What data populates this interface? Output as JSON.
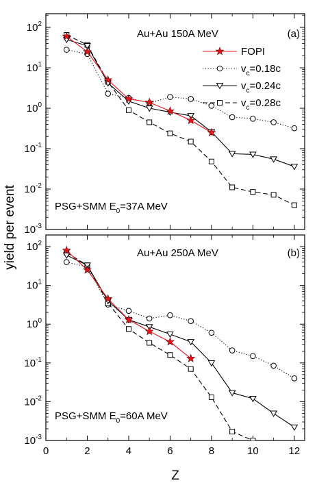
{
  "figure": {
    "ylabel": "yield per event",
    "xlabel": "Z"
  },
  "chart_data": [
    {
      "type": "line",
      "panel_label": "(a)",
      "title": "Au+Au   150A MeV",
      "annotation": {
        "prefix": "PSG+SMM E",
        "sub": "0",
        "suffix": "=37A MeV"
      },
      "xlim": [
        0,
        12.5
      ],
      "ylim": [
        0.001,
        200
      ],
      "yscale": "log",
      "xticks": [
        0,
        2,
        4,
        6,
        8,
        10,
        12
      ],
      "yticks": [
        {
          "base": "10",
          "exp": "2",
          "value": 100
        },
        {
          "base": "10",
          "exp": "1",
          "value": 10
        },
        {
          "base": "10",
          "exp": "0",
          "value": 1
        },
        {
          "base": "10",
          "exp": "-1",
          "value": 0.1
        },
        {
          "base": "10",
          "exp": "-2",
          "value": 0.01
        },
        {
          "base": "10",
          "exp": "-3",
          "value": 0.001
        }
      ],
      "legend_position": "top-right",
      "series": [
        {
          "name": "FOPI",
          "label": {
            "text": "FOPI"
          },
          "style": "solid",
          "color": "#e8141c",
          "marker": "star",
          "x": [
            1,
            2,
            3,
            4,
            5,
            6,
            7,
            8
          ],
          "y": [
            60,
            25,
            5,
            1.7,
            1.4,
            0.85,
            0.5,
            0.25
          ]
        },
        {
          "name": "v_c=0.18c",
          "label": {
            "base": "v",
            "sub": "c",
            "rest": "=0.18c"
          },
          "style": "dotted",
          "color": "#000000",
          "marker": "circle",
          "x": [
            1,
            2,
            3,
            4,
            5,
            6,
            7,
            8,
            9,
            10,
            11,
            12
          ],
          "y": [
            28,
            22,
            2.3,
            1.8,
            1.35,
            1.9,
            1.7,
            1.15,
            0.6,
            0.55,
            0.45,
            0.32
          ]
        },
        {
          "name": "v_c=0.24c",
          "label": {
            "base": "v",
            "sub": "c",
            "rest": "=0.24c"
          },
          "style": "solid",
          "color": "#000000",
          "marker": "triangle-down",
          "x": [
            1,
            2,
            3,
            4,
            5,
            6,
            7,
            8,
            9,
            10,
            11,
            12
          ],
          "y": [
            50,
            35,
            4.2,
            1.5,
            1.0,
            0.8,
            0.65,
            0.26,
            0.075,
            0.072,
            0.055,
            0.036
          ]
        },
        {
          "name": "v_c=0.28c",
          "label": {
            "base": "v",
            "sub": "c",
            "rest": "=0.28c"
          },
          "style": "dashed",
          "color": "#000000",
          "marker": "square",
          "x": [
            1,
            2,
            3,
            4,
            5,
            6,
            7,
            8,
            9,
            10,
            11,
            12
          ],
          "y": [
            65,
            37,
            4.5,
            0.9,
            0.45,
            0.24,
            0.15,
            0.048,
            0.011,
            0.0085,
            0.0072,
            0.004
          ]
        }
      ]
    },
    {
      "type": "line",
      "panel_label": "(b)",
      "title": "Au+Au   250A MeV",
      "annotation": {
        "prefix": "PSG+SMM E",
        "sub": "0",
        "suffix": "=60A MeV"
      },
      "xlim": [
        0,
        12.5
      ],
      "ylim": [
        0.001,
        200
      ],
      "yscale": "log",
      "xticks": [
        0,
        2,
        4,
        6,
        8,
        10,
        12
      ],
      "yticks": [
        {
          "base": "10",
          "exp": "2",
          "value": 100
        },
        {
          "base": "10",
          "exp": "1",
          "value": 10
        },
        {
          "base": "10",
          "exp": "0",
          "value": 1
        },
        {
          "base": "10",
          "exp": "-1",
          "value": 0.1
        },
        {
          "base": "10",
          "exp": "-2",
          "value": 0.01
        },
        {
          "base": "10",
          "exp": "-3",
          "value": 0.001
        }
      ],
      "series": [
        {
          "name": "FOPI",
          "style": "solid",
          "color": "#e8141c",
          "marker": "star",
          "x": [
            1,
            2,
            3,
            4,
            5,
            6,
            7
          ],
          "y": [
            80,
            25,
            4.5,
            1.3,
            0.65,
            0.35,
            0.13
          ]
        },
        {
          "name": "v_c=0.18c",
          "style": "dotted",
          "color": "#000000",
          "marker": "circle",
          "x": [
            1,
            2,
            3,
            4,
            5,
            6,
            7,
            8,
            9,
            10,
            11,
            12
          ],
          "y": [
            40,
            30,
            3.2,
            2.2,
            1.4,
            1.7,
            1.2,
            0.6,
            0.21,
            0.15,
            0.085,
            0.04
          ]
        },
        {
          "name": "v_c=0.24c",
          "style": "solid",
          "color": "#000000",
          "marker": "triangle-down",
          "x": [
            1,
            2,
            3,
            4,
            5,
            6,
            7,
            8,
            9,
            10,
            11,
            12
          ],
          "y": [
            60,
            33,
            4.0,
            1.3,
            0.85,
            0.55,
            0.35,
            0.1,
            0.017,
            0.012,
            0.005,
            0.0022
          ]
        },
        {
          "name": "v_c=0.28c",
          "style": "dashed",
          "color": "#000000",
          "marker": "square",
          "x": [
            1,
            2,
            3,
            4,
            5,
            6,
            7,
            8,
            9,
            10
          ],
          "y": [
            70,
            33,
            3.5,
            0.75,
            0.33,
            0.16,
            0.07,
            0.013,
            0.0017,
            0.001
          ]
        }
      ]
    }
  ]
}
